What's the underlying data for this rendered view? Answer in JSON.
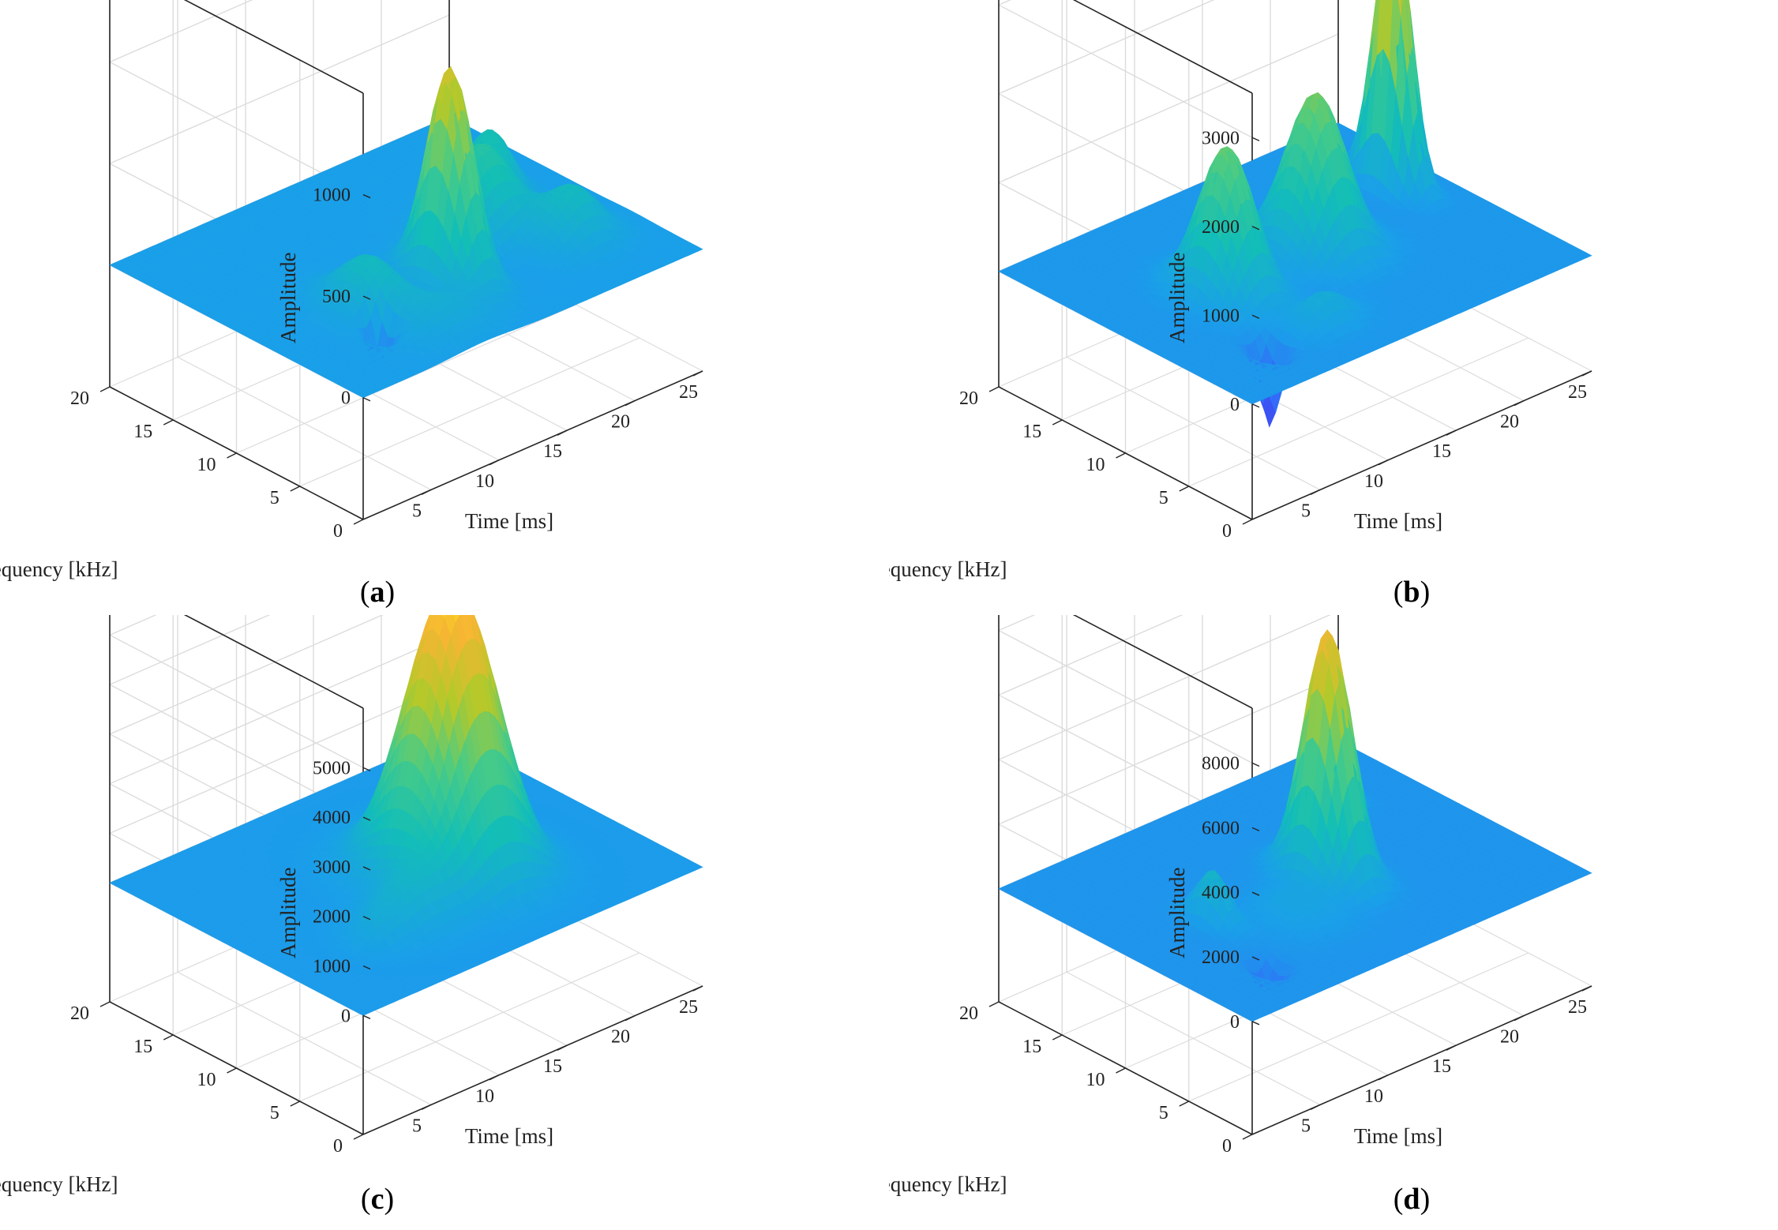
{
  "figure": {
    "colors": {
      "grid": "#dcdcdc",
      "box": "#262626",
      "colormap": [
        "#3e26a8",
        "#3b5afe",
        "#1a9fe9",
        "#13beb7",
        "#48cb86",
        "#b4c92a",
        "#f7b534",
        "#f9fb0e"
      ]
    }
  },
  "chart_data": [
    {
      "panel": "a",
      "type": "surface",
      "caption_letter": "a",
      "xlabel": "Time [ms]",
      "ylabel": "Frequency [kHz]",
      "zlabel": "Amplitude",
      "xlim": [
        0,
        25
      ],
      "ylim": [
        0,
        20
      ],
      "zlim": [
        -600,
        1500
      ],
      "xticks": [
        5,
        10,
        15,
        20,
        25
      ],
      "yticks": [
        0,
        5,
        10,
        15,
        20
      ],
      "zticks": [
        0,
        500,
        1000
      ],
      "xtick_labels": [
        "5",
        "10",
        "15",
        "20",
        "25"
      ],
      "ytick_labels": [
        "0",
        "5",
        "10",
        "15",
        "20"
      ],
      "ztick_labels": [
        "0",
        "500",
        "1000"
      ],
      "grid": true,
      "peaks": [
        {
          "t": 12.5,
          "f": 6.5,
          "amp": 1050,
          "st": 1.0,
          "sf": 1.6
        },
        {
          "t": 7.0,
          "f": 7.0,
          "amp": 260,
          "st": 1.4,
          "sf": 2.0
        },
        {
          "t": 17.5,
          "f": 9.5,
          "amp": 420,
          "st": 1.8,
          "sf": 1.6
        },
        {
          "t": 20.5,
          "f": 12.0,
          "amp": 300,
          "st": 1.2,
          "sf": 1.3
        },
        {
          "t": 20.5,
          "f": 5.5,
          "amp": 260,
          "st": 1.6,
          "sf": 1.5
        },
        {
          "t": 9.0,
          "f": 3.0,
          "amp": 120,
          "st": 2.0,
          "sf": 1.5
        },
        {
          "t": 5.5,
          "f": 4.5,
          "amp": -280,
          "st": 0.5,
          "sf": 0.7
        }
      ]
    },
    {
      "panel": "b",
      "type": "surface",
      "caption_letter": "b",
      "xlabel": "Time [ms]",
      "ylabel": "Frequency [kHz]",
      "zlabel": "Amplitude",
      "xlim": [
        0,
        25
      ],
      "ylim": [
        0,
        20
      ],
      "zlim": [
        -1300,
        3500
      ],
      "xticks": [
        5,
        10,
        15,
        20,
        25
      ],
      "yticks": [
        0,
        5,
        10,
        15,
        20
      ],
      "zticks": [
        0,
        1000,
        2000,
        3000
      ],
      "xtick_labels": [
        "5",
        "10",
        "15",
        "20",
        "25"
      ],
      "ytick_labels": [
        "0",
        "5",
        "10",
        "15",
        "20"
      ],
      "ztick_labels": [
        "0",
        "1000",
        "2000",
        "3000"
      ],
      "grid": true,
      "peaks": [
        {
          "t": 7.5,
          "f": 10.0,
          "amp": 1650,
          "st": 1.3,
          "sf": 1.8
        },
        {
          "t": 14.5,
          "f": 10.5,
          "amp": 1750,
          "st": 1.6,
          "sf": 1.8
        },
        {
          "t": 22.5,
          "f": 13.0,
          "amp": 3200,
          "st": 0.6,
          "sf": 1.3
        },
        {
          "t": 9.0,
          "f": 4.0,
          "amp": 350,
          "st": 1.5,
          "sf": 1.0
        },
        {
          "t": 5.0,
          "f": 4.0,
          "amp": -900,
          "st": 0.5,
          "sf": 0.7
        }
      ]
    },
    {
      "panel": "c",
      "type": "surface",
      "caption_letter": "c",
      "xlabel": "Time [ms]",
      "ylabel": "Frequency [kHz]",
      "zlabel": "Amplitude",
      "xlim": [
        0,
        25
      ],
      "ylim": [
        0,
        20
      ],
      "zlim": [
        -2400,
        6200
      ],
      "xticks": [
        5,
        10,
        15,
        20,
        25
      ],
      "yticks": [
        0,
        5,
        10,
        15,
        20
      ],
      "zticks": [
        0,
        1000,
        2000,
        3000,
        4000,
        5000
      ],
      "xtick_labels": [
        "5",
        "10",
        "15",
        "20",
        "25"
      ],
      "ytick_labels": [
        "0",
        "5",
        "10",
        "15",
        "20"
      ],
      "ztick_labels": [
        "0",
        "1000",
        "2000",
        "3000",
        "4000",
        "5000"
      ],
      "grid": true,
      "peaks": [
        {
          "t": 14.5,
          "f": 9.0,
          "amp": 5300,
          "st": 2.2,
          "sf": 2.5
        },
        {
          "t": 17.0,
          "f": 8.5,
          "amp": 1200,
          "st": 1.6,
          "sf": 2.0
        },
        {
          "t": 9.0,
          "f": 6.0,
          "amp": 800,
          "st": 1.8,
          "sf": 1.6
        },
        {
          "t": 6.0,
          "f": 5.5,
          "amp": 300,
          "st": 1.0,
          "sf": 1.0
        }
      ]
    },
    {
      "panel": "d",
      "type": "surface",
      "caption_letter": "d",
      "xlabel": "Time [ms]",
      "ylabel": "Frequency [kHz]",
      "zlabel": "Amplitude",
      "xlim": [
        0,
        25
      ],
      "ylim": [
        0,
        20
      ],
      "zlim": [
        -3500,
        9700
      ],
      "xticks": [
        5,
        10,
        15,
        20,
        25
      ],
      "yticks": [
        0,
        5,
        10,
        15,
        20
      ],
      "zticks": [
        0,
        2000,
        4000,
        6000,
        8000
      ],
      "xtick_labels": [
        "5",
        "10",
        "15",
        "20",
        "25"
      ],
      "ytick_labels": [
        "0",
        "5",
        "10",
        "15",
        "20"
      ],
      "ztick_labels": [
        "0",
        "2000",
        "4000",
        "6000",
        "8000"
      ],
      "grid": true,
      "peaks": [
        {
          "t": 14.0,
          "f": 9.0,
          "amp": 7700,
          "st": 1.1,
          "sf": 1.6
        },
        {
          "t": 6.0,
          "f": 9.5,
          "amp": 1600,
          "st": 0.6,
          "sf": 1.2
        },
        {
          "t": 20.0,
          "f": 15.0,
          "amp": 1300,
          "st": 0.8,
          "sf": 1.0
        },
        {
          "t": 10.0,
          "f": 7.0,
          "amp": 600,
          "st": 1.8,
          "sf": 2.0
        },
        {
          "t": 5.0,
          "f": 4.0,
          "amp": -1300,
          "st": 0.5,
          "sf": 0.7
        }
      ]
    }
  ]
}
